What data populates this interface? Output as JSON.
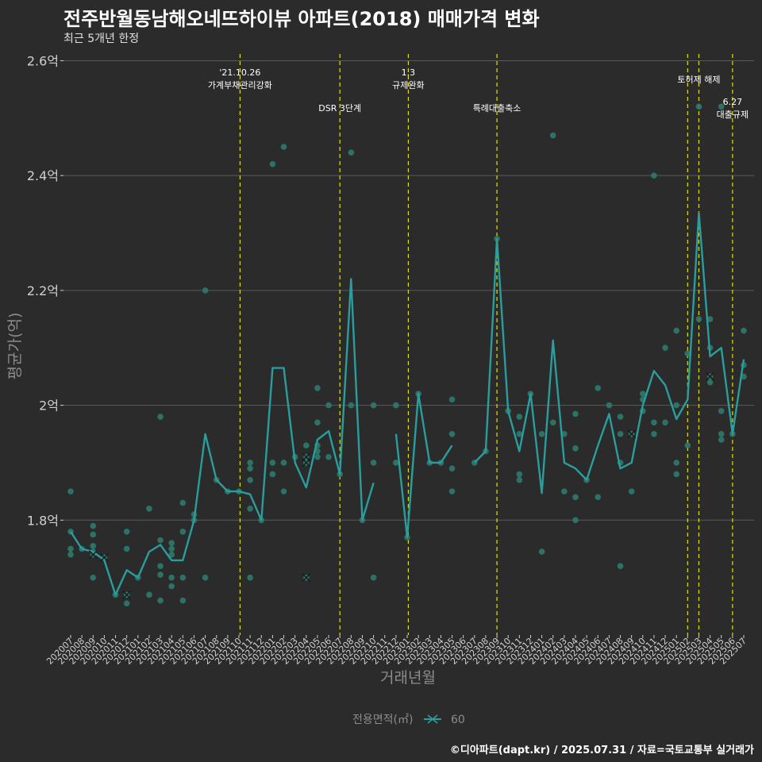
{
  "header": {
    "title": "전주반월동남해오네뜨하이뷰 아파트(2018) 매매가격 변화",
    "subtitle": "최근 5개년 한정"
  },
  "caption": "©디아파트(dapt.kr) / 2025.07.31 / 자료=국토교통부 실거래가",
  "colors": {
    "background": "#2b2b2b",
    "grid": "#5a5a5a",
    "series": "#2a9d9d",
    "point": "#2d7a6e",
    "event_line": "#e0e000",
    "axis_text": "#d0d0d0",
    "axis_title": "#8c8c8c"
  },
  "chart_data": {
    "type": "line",
    "title": "전주반월동남해오네뜨하이뷰 아파트(2018) 매매가격 변화",
    "xlabel": "거래년월",
    "ylabel": "평균가(억)",
    "ylim": [
      1.6,
      2.62
    ],
    "yticks": [
      1.8,
      2.0,
      2.2,
      2.4,
      2.6
    ],
    "ytick_labels": [
      "1.8억",
      "2억",
      "2.2억",
      "2.4억",
      "2.6억"
    ],
    "legend": {
      "title": "전용면적(㎡)",
      "label": "60",
      "position": "bottom"
    },
    "categories": [
      "202007",
      "202008",
      "202009",
      "202010",
      "202011",
      "202012",
      "202101",
      "202102",
      "202103",
      "202104",
      "202105",
      "202106",
      "202107",
      "202108",
      "202109",
      "202110",
      "202111",
      "202112",
      "202201",
      "202202",
      "202203",
      "202204",
      "202205",
      "202206",
      "202207",
      "202208",
      "202209",
      "202210",
      "202211",
      "202212",
      "202301",
      "202302",
      "202303",
      "202304",
      "202305",
      "202306",
      "202307",
      "202308",
      "202309",
      "202310",
      "202311",
      "202312",
      "202401",
      "202402",
      "202403",
      "202404",
      "202405",
      "202406",
      "202407",
      "202408",
      "202409",
      "202410",
      "202411",
      "202412",
      "202501",
      "202502",
      "202503",
      "202504",
      "202505",
      "202506",
      "202507"
    ],
    "series": [
      {
        "name": "60",
        "values": [
          1.78,
          1.75,
          1.745,
          1.73,
          1.67,
          1.713,
          1.7,
          1.745,
          1.757,
          1.73,
          1.73,
          1.8,
          1.95,
          1.87,
          1.85,
          1.85,
          1.845,
          1.8,
          2.065,
          2.065,
          1.9,
          1.857,
          1.94,
          1.955,
          1.88,
          2.22,
          1.8,
          1.865,
          null,
          1.95,
          1.77,
          2.02,
          1.9,
          1.9,
          1.93,
          null,
          1.9,
          1.92,
          2.29,
          1.99,
          1.92,
          2.02,
          1.847,
          2.113,
          1.9,
          1.89,
          1.87,
          1.93,
          1.985,
          1.89,
          1.9,
          2.0,
          2.06,
          2.035,
          1.976,
          2.01,
          2.335,
          2.085,
          2.1,
          1.95,
          2.08
        ]
      }
    ],
    "points": [
      {
        "x": "202007",
        "y": 1.85
      },
      {
        "x": "202007",
        "y": 1.78
      },
      {
        "x": "202007",
        "y": 1.75
      },
      {
        "x": "202007",
        "y": 1.74
      },
      {
        "x": "202008",
        "y": 1.75
      },
      {
        "x": "202009",
        "y": 1.79
      },
      {
        "x": "202009",
        "y": 1.775
      },
      {
        "x": "202009",
        "y": 1.755
      },
      {
        "x": "202009",
        "y": 1.745
      },
      {
        "x": "202009",
        "y": 1.74
      },
      {
        "x": "202009",
        "y": 1.7
      },
      {
        "x": "202010",
        "y": 1.735
      },
      {
        "x": "202011",
        "y": 1.67
      },
      {
        "x": "202012",
        "y": 1.78
      },
      {
        "x": "202012",
        "y": 1.75
      },
      {
        "x": "202012",
        "y": 1.67
      },
      {
        "x": "202012",
        "y": 1.655
      },
      {
        "x": "202101",
        "y": 1.7
      },
      {
        "x": "202102",
        "y": 1.82
      },
      {
        "x": "202102",
        "y": 1.67
      },
      {
        "x": "202103",
        "y": 1.98
      },
      {
        "x": "202103",
        "y": 1.765
      },
      {
        "x": "202103",
        "y": 1.72
      },
      {
        "x": "202103",
        "y": 1.705
      },
      {
        "x": "202103",
        "y": 1.66
      },
      {
        "x": "202104",
        "y": 1.76
      },
      {
        "x": "202104",
        "y": 1.75
      },
      {
        "x": "202104",
        "y": 1.74
      },
      {
        "x": "202104",
        "y": 1.7
      },
      {
        "x": "202104",
        "y": 1.685
      },
      {
        "x": "202105",
        "y": 1.83
      },
      {
        "x": "202105",
        "y": 1.78
      },
      {
        "x": "202105",
        "y": 1.7
      },
      {
        "x": "202105",
        "y": 1.66
      },
      {
        "x": "202106",
        "y": 1.81
      },
      {
        "x": "202106",
        "y": 1.8
      },
      {
        "x": "202107",
        "y": 2.2
      },
      {
        "x": "202107",
        "y": 1.7
      },
      {
        "x": "202108",
        "y": 1.87
      },
      {
        "x": "202109",
        "y": 1.85
      },
      {
        "x": "202110",
        "y": 1.85
      },
      {
        "x": "202111",
        "y": 1.9
      },
      {
        "x": "202111",
        "y": 1.89
      },
      {
        "x": "202111",
        "y": 1.87
      },
      {
        "x": "202111",
        "y": 1.82
      },
      {
        "x": "202111",
        "y": 1.7
      },
      {
        "x": "202112",
        "y": 1.8
      },
      {
        "x": "202201",
        "y": 2.42
      },
      {
        "x": "202201",
        "y": 1.9
      },
      {
        "x": "202201",
        "y": 1.88
      },
      {
        "x": "202202",
        "y": 2.45
      },
      {
        "x": "202202",
        "y": 1.9
      },
      {
        "x": "202202",
        "y": 1.85
      },
      {
        "x": "202203",
        "y": 1.91
      },
      {
        "x": "202204",
        "y": 1.93
      },
      {
        "x": "202204",
        "y": 1.91
      },
      {
        "x": "202204",
        "y": 1.9
      },
      {
        "x": "202204",
        "y": 1.7
      },
      {
        "x": "202205",
        "y": 2.03
      },
      {
        "x": "202205",
        "y": 1.97
      },
      {
        "x": "202205",
        "y": 1.93
      },
      {
        "x": "202205",
        "y": 1.92
      },
      {
        "x": "202205",
        "y": 1.91
      },
      {
        "x": "202206",
        "y": 2.0
      },
      {
        "x": "202206",
        "y": 1.91
      },
      {
        "x": "202207",
        "y": 1.88
      },
      {
        "x": "202208",
        "y": 2.44
      },
      {
        "x": "202208",
        "y": 2.0
      },
      {
        "x": "202209",
        "y": 1.8
      },
      {
        "x": "202210",
        "y": 2.0
      },
      {
        "x": "202210",
        "y": 1.9
      },
      {
        "x": "202210",
        "y": 1.7
      },
      {
        "x": "202212",
        "y": 2.0
      },
      {
        "x": "202212",
        "y": 1.9
      },
      {
        "x": "202301",
        "y": 1.77
      },
      {
        "x": "202302",
        "y": 2.02
      },
      {
        "x": "202303",
        "y": 1.9
      },
      {
        "x": "202304",
        "y": 1.9
      },
      {
        "x": "202305",
        "y": 2.01
      },
      {
        "x": "202305",
        "y": 1.95
      },
      {
        "x": "202305",
        "y": 1.89
      },
      {
        "x": "202305",
        "y": 1.85
      },
      {
        "x": "202307",
        "y": 1.9
      },
      {
        "x": "202308",
        "y": 1.92
      },
      {
        "x": "202309",
        "y": 2.29
      },
      {
        "x": "202310",
        "y": 1.99
      },
      {
        "x": "202311",
        "y": 1.98
      },
      {
        "x": "202311",
        "y": 1.95
      },
      {
        "x": "202311",
        "y": 1.88
      },
      {
        "x": "202311",
        "y": 1.87
      },
      {
        "x": "202312",
        "y": 2.02
      },
      {
        "x": "202401",
        "y": 1.95
      },
      {
        "x": "202401",
        "y": 1.745
      },
      {
        "x": "202402",
        "y": 2.47
      },
      {
        "x": "202402",
        "y": 1.97
      },
      {
        "x": "202403",
        "y": 1.95
      },
      {
        "x": "202403",
        "y": 1.85
      },
      {
        "x": "202404",
        "y": 1.985
      },
      {
        "x": "202404",
        "y": 1.925
      },
      {
        "x": "202404",
        "y": 1.84
      },
      {
        "x": "202404",
        "y": 1.8
      },
      {
        "x": "202405",
        "y": 1.87
      },
      {
        "x": "202406",
        "y": 2.03
      },
      {
        "x": "202406",
        "y": 1.84
      },
      {
        "x": "202407",
        "y": 2.0
      },
      {
        "x": "202408",
        "y": 1.98
      },
      {
        "x": "202408",
        "y": 1.95
      },
      {
        "x": "202408",
        "y": 1.9
      },
      {
        "x": "202408",
        "y": 1.72
      },
      {
        "x": "202409",
        "y": 1.95
      },
      {
        "x": "202409",
        "y": 1.85
      },
      {
        "x": "202410",
        "y": 2.02
      },
      {
        "x": "202410",
        "y": 2.01
      },
      {
        "x": "202410",
        "y": 1.99
      },
      {
        "x": "202411",
        "y": 2.4
      },
      {
        "x": "202411",
        "y": 1.97
      },
      {
        "x": "202411",
        "y": 1.95
      },
      {
        "x": "202412",
        "y": 2.1
      },
      {
        "x": "202412",
        "y": 1.97
      },
      {
        "x": "202501",
        "y": 2.13
      },
      {
        "x": "202501",
        "y": 2.0
      },
      {
        "x": "202501",
        "y": 1.9
      },
      {
        "x": "202501",
        "y": 1.88
      },
      {
        "x": "202502",
        "y": 2.09
      },
      {
        "x": "202502",
        "y": 1.93
      },
      {
        "x": "202503",
        "y": 2.52
      },
      {
        "x": "202503",
        "y": 2.15
      },
      {
        "x": "202504",
        "y": 2.15
      },
      {
        "x": "202504",
        "y": 2.1
      },
      {
        "x": "202504",
        "y": 2.05
      },
      {
        "x": "202504",
        "y": 2.04
      },
      {
        "x": "202505",
        "y": 2.52
      },
      {
        "x": "202505",
        "y": 1.99
      },
      {
        "x": "202505",
        "y": 1.95
      },
      {
        "x": "202505",
        "y": 1.94
      },
      {
        "x": "202506",
        "y": 1.95
      },
      {
        "x": "202507",
        "y": 2.13
      },
      {
        "x": "202507",
        "y": 2.07
      },
      {
        "x": "202507",
        "y": 2.05
      }
    ],
    "crossed_points": [
      {
        "x": "202009",
        "y": 1.74
      },
      {
        "x": "202010",
        "y": 1.735
      },
      {
        "x": "202012",
        "y": 1.67
      },
      {
        "x": "202204",
        "y": 1.91
      },
      {
        "x": "202204",
        "y": 1.9
      },
      {
        "x": "202204",
        "y": 1.7
      },
      {
        "x": "202409",
        "y": 1.95
      },
      {
        "x": "202504",
        "y": 2.05
      }
    ],
    "events": [
      {
        "x": 202110.1,
        "labels": [
          "'21.10.26",
          "가계부채관리강화"
        ],
        "level": "high"
      },
      {
        "x": 202207.0,
        "labels": [
          "DSR 3단계"
        ],
        "level": "mid"
      },
      {
        "x": 202301.1,
        "labels": [
          "1.3",
          "규제완화"
        ],
        "level": "high"
      },
      {
        "x": 202309.0,
        "labels": [
          "특례대출축소"
        ],
        "level": "mid"
      },
      {
        "x": 202502.0,
        "labels": [],
        "level": "none"
      },
      {
        "x": 202503.0,
        "labels": [
          "토허제 해제"
        ],
        "level": "top"
      },
      {
        "x": 202506.0,
        "labels": [
          "6.27",
          "대출규제"
        ],
        "level": "low"
      }
    ]
  }
}
